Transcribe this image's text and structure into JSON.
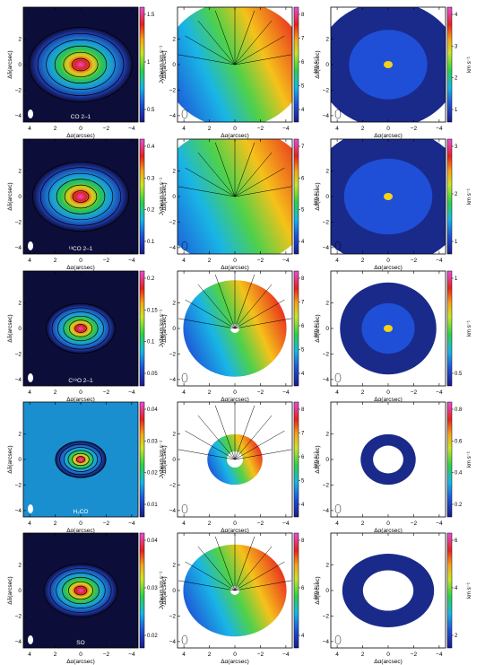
{
  "figure": {
    "rows": [
      {
        "line": "CO 2–1",
        "mom0": {
          "cb_ticks": [
            "1.5",
            "1",
            "0.5"
          ],
          "cb_label": "Jy/beam km s⁻¹"
        },
        "mom1": {
          "cb_ticks": [
            "8",
            "7",
            "6",
            "5",
            "4"
          ],
          "cb_label": "km s⁻¹"
        },
        "mom2": {
          "cb_ticks": [
            "4",
            "3",
            "2",
            "1"
          ],
          "cb_label": "km s⁻¹"
        }
      },
      {
        "line": "¹³CO 2–1",
        "mom0": {
          "cb_ticks": [
            "0.4",
            "0.3",
            "0.2",
            "0.1"
          ],
          "cb_label": "Jy/beam km s⁻¹"
        },
        "mom1": {
          "cb_ticks": [
            "7",
            "6",
            "5",
            "4"
          ],
          "cb_label": "km s⁻¹"
        },
        "mom2": {
          "cb_ticks": [
            "3",
            "2",
            "1"
          ],
          "cb_label": "km s⁻¹"
        }
      },
      {
        "line": "C¹⁸O 2–1",
        "mom0": {
          "cb_ticks": [
            "0.2",
            "0.15",
            "0.1",
            "0.05"
          ],
          "cb_label": "Jy/beam km s⁻¹"
        },
        "mom1": {
          "cb_ticks": [
            "8",
            "7",
            "6",
            "5",
            "4"
          ],
          "cb_label": "km s⁻¹"
        },
        "mom2": {
          "cb_ticks": [
            "1",
            "0.5"
          ],
          "cb_label": "km s⁻¹"
        }
      },
      {
        "line": "H₂CO",
        "mom0": {
          "cb_ticks": [
            "0.04",
            "0.03",
            "0.02",
            "0.01"
          ],
          "cb_label": "Jy/beam km s⁻¹"
        },
        "mom1": {
          "cb_ticks": [
            "8",
            "7",
            "6",
            "5",
            "4"
          ],
          "cb_label": "km s⁻¹"
        },
        "mom2": {
          "cb_ticks": [
            "0.8",
            "0.6",
            "0.4",
            "0.2"
          ],
          "cb_label": "km s⁻¹"
        }
      },
      {
        "line": "SO",
        "mom0": {
          "cb_ticks": [
            "0.04",
            "0.03",
            "0.02"
          ],
          "cb_label": "Jy/beam km s⁻¹"
        },
        "mom1": {
          "cb_ticks": [
            "8",
            "6",
            "4"
          ],
          "cb_label": "km s⁻¹"
        },
        "mom2": {
          "cb_ticks": [
            "6",
            "4",
            "2"
          ],
          "cb_label": "km s⁻¹"
        }
      }
    ],
    "x_label": "Δα(arcsec)",
    "y_label": "Δδ(arcsec)",
    "x_ticks": [
      "4",
      "2",
      "0",
      "−2",
      "−4"
    ],
    "y_ticks": [
      "2",
      "0",
      "−2",
      "−4"
    ]
  },
  "chart_data": {
    "type": "heatmap",
    "description_free": true,
    "grid": "5x3",
    "xlim": [
      4.5,
      -4.5
    ],
    "ylim": [
      -4.5,
      4.5
    ],
    "panel_types": [
      "mom0",
      "mom1",
      "mom2"
    ],
    "colors": {
      "mom0_bg": "#0d0d3a",
      "mom1_mid": "#33cc33",
      "mom2_bg": "#1a2a8a"
    }
  }
}
